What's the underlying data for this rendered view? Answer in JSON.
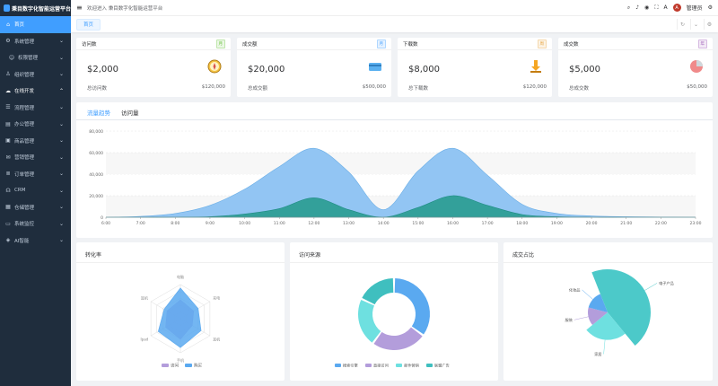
{
  "app": {
    "title": "秉目数字化智能运营平台",
    "welcome": "欢迎进入 秉目数字化智能运营平台",
    "user": "管理员",
    "avatar_text": "A"
  },
  "sidebar": {
    "items": [
      {
        "label": "首页",
        "icon": "home-icon"
      },
      {
        "label": "系统管理",
        "icon": "gear-icon"
      },
      {
        "label": "权限管理",
        "icon": "user-icon"
      },
      {
        "label": "组织管理",
        "icon": "org-icon"
      },
      {
        "label": "在线开发",
        "icon": "cloud-icon"
      },
      {
        "label": "流程管理",
        "icon": "flow-icon"
      },
      {
        "label": "办公管理",
        "icon": "doc-icon"
      },
      {
        "label": "商品管理",
        "icon": "bag-icon"
      },
      {
        "label": "营销管理",
        "icon": "gift-icon"
      },
      {
        "label": "订单管理",
        "icon": "order-icon"
      },
      {
        "label": "CRM",
        "icon": "headset-icon"
      },
      {
        "label": "仓储管理",
        "icon": "box-icon"
      },
      {
        "label": "系统监控",
        "icon": "monitor-icon"
      },
      {
        "label": "AI智能",
        "icon": "ai-icon"
      }
    ]
  },
  "tabs": [
    {
      "label": "首页"
    }
  ],
  "stats": [
    {
      "title": "访问数",
      "badge": "月",
      "badge_color": "#67c23a",
      "value": "$2,000",
      "foot_label": "总访问数",
      "foot_value": "$120,000",
      "icon": "compass-icon"
    },
    {
      "title": "成交额",
      "badge": "月",
      "badge_color": "#409eff",
      "value": "$20,000",
      "foot_label": "总成交额",
      "foot_value": "$500,000",
      "icon": "card-icon"
    },
    {
      "title": "下载数",
      "badge": "周",
      "badge_color": "#e6a23c",
      "value": "$8,000",
      "foot_label": "总下载数",
      "foot_value": "$120,000",
      "icon": "download-icon"
    },
    {
      "title": "成交数",
      "badge": "年",
      "badge_color": "#9b59b6",
      "value": "$5,000",
      "foot_label": "总成交数",
      "foot_value": "$50,000",
      "icon": "pie-icon"
    }
  ],
  "traffic": {
    "tab_active": "流量趋势",
    "tab_other": "访问量"
  },
  "chart_data": [
    {
      "type": "area",
      "x": [
        "6:00",
        "7:00",
        "8:00",
        "9:00",
        "10:00",
        "11:00",
        "12:00",
        "13:00",
        "14:00",
        "15:00",
        "16:00",
        "17:00",
        "18:00",
        "19:00",
        "20:00",
        "21:00",
        "22:00",
        "23:00"
      ],
      "series": [
        {
          "values": [
            0,
            800,
            3500,
            11000,
            26000,
            47000,
            64000,
            42000,
            7000,
            43000,
            64000,
            39000,
            12000,
            3500,
            1200,
            500,
            200,
            0
          ],
          "color": "#8cc2f2"
        },
        {
          "values": [
            0,
            0,
            0,
            500,
            3000,
            8000,
            18000,
            7000,
            0,
            9000,
            20000,
            11000,
            2500,
            500,
            0,
            0,
            0,
            0
          ],
          "color": "#2e9e95"
        }
      ],
      "yticks": [
        "0",
        "20,000",
        "40,000",
        "60,000",
        "80,000"
      ],
      "ylim": [
        0,
        80000
      ]
    },
    {
      "type": "radar",
      "title": "转化率",
      "indicators": [
        "电脑",
        "充电",
        "耳机",
        "手机",
        "Ipad",
        "耳机"
      ],
      "series": [
        {
          "name": "访问",
          "values": [
            55,
            45,
            40,
            60,
            50,
            45
          ],
          "color": "#b39ddb"
        },
        {
          "name": "购买",
          "values": [
            90,
            60,
            70,
            85,
            75,
            55
          ],
          "color": "#5aa9f0"
        }
      ]
    },
    {
      "type": "pie",
      "title": "访问来源",
      "series": [
        {
          "name": "搜索引擎",
          "value": 35,
          "color": "#5aa9f0"
        },
        {
          "name": "直接访问",
          "value": 25,
          "color": "#b39ddb"
        },
        {
          "name": "邮件营销",
          "value": 22,
          "color": "#6ee0e0"
        },
        {
          "name": "联盟广告",
          "value": 18,
          "color": "#3fbfbf"
        }
      ]
    },
    {
      "type": "pie",
      "title": "成交占比",
      "series": [
        {
          "name": "电子产品",
          "value": 45,
          "color": "#4cc9c9"
        },
        {
          "name": "家居",
          "value": 25,
          "color": "#6ee0e0"
        },
        {
          "name": "服装",
          "value": 15,
          "color": "#b39ddb"
        },
        {
          "name": "化妆品",
          "value": 15,
          "color": "#5aa9f0"
        }
      ]
    }
  ]
}
